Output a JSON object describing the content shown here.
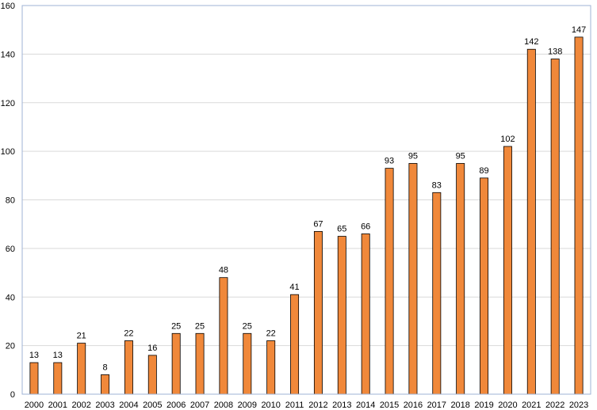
{
  "chart_data": {
    "type": "bar",
    "title": "",
    "xlabel": "",
    "ylabel": "",
    "categories": [
      "2000",
      "2001",
      "2002",
      "2003",
      "2004",
      "2005",
      "2006",
      "2007",
      "2008",
      "2009",
      "2010",
      "2011",
      "2012",
      "2013",
      "2014",
      "2015",
      "2016",
      "2017",
      "2018",
      "2019",
      "2020",
      "2021",
      "2022",
      "2023"
    ],
    "values": [
      13,
      13,
      21,
      8,
      22,
      16,
      25,
      25,
      48,
      25,
      22,
      41,
      67,
      65,
      66,
      93,
      95,
      83,
      95,
      89,
      102,
      142,
      138,
      147
    ],
    "ylim": [
      0,
      160
    ],
    "yticks": [
      0,
      20,
      40,
      60,
      80,
      100,
      120,
      140,
      160
    ],
    "grid": true,
    "legend": "none",
    "data_labels": true,
    "colors": {
      "bar_fill": "#f0883a",
      "bar_stroke": "#000000",
      "grid": "#d9d9d9",
      "plot_border": "#9fb3d6"
    }
  }
}
